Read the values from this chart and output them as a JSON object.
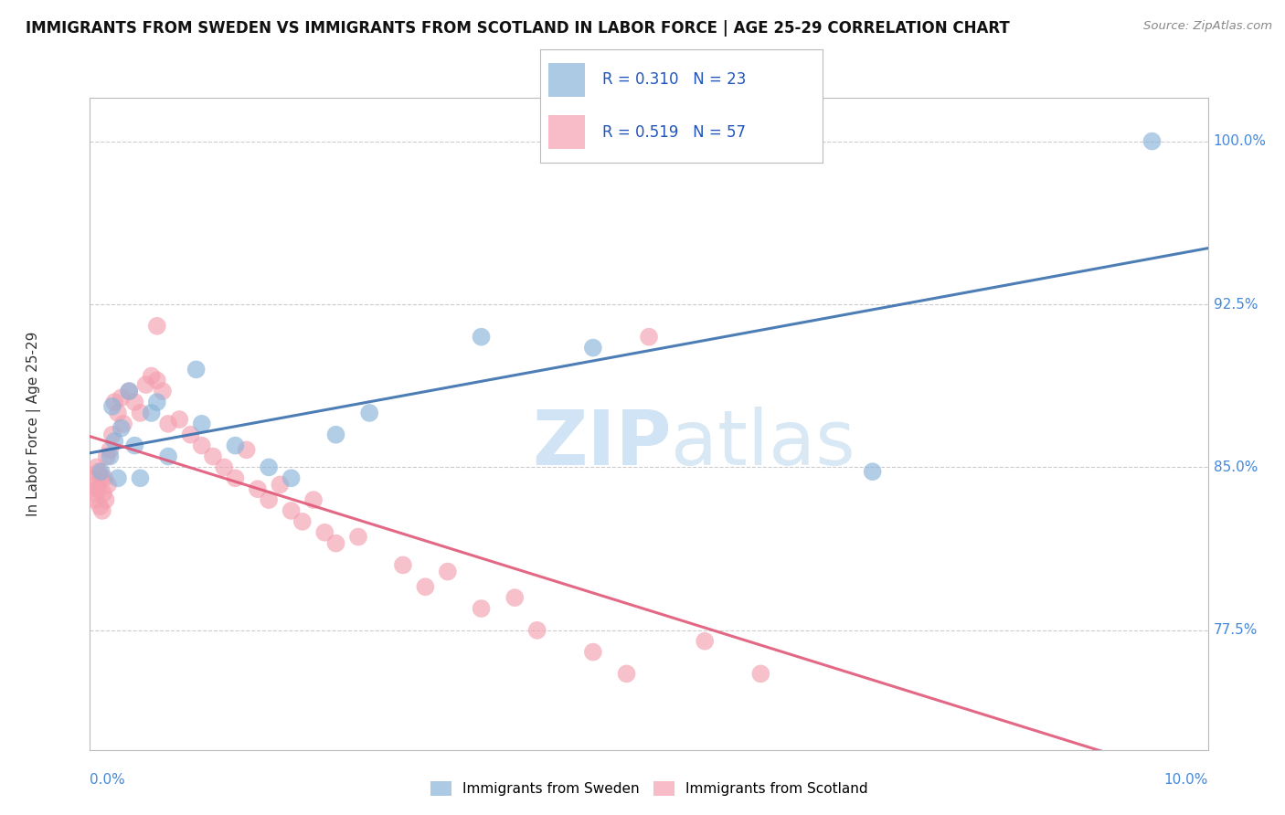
{
  "title": "IMMIGRANTS FROM SWEDEN VS IMMIGRANTS FROM SCOTLAND IN LABOR FORCE | AGE 25-29 CORRELATION CHART",
  "source": "Source: ZipAtlas.com",
  "ylabel_label": "In Labor Force | Age 25-29",
  "legend_blue_r": "R = 0.310",
  "legend_blue_n": "N = 23",
  "legend_pink_r": "R = 0.519",
  "legend_pink_n": "N = 57",
  "blue_color": "#89b4d9",
  "pink_color": "#f4a0b0",
  "blue_line_color": "#3a6fad",
  "pink_line_color": "#e05878",
  "blue_scatter": [
    [
      0.1,
      84.8
    ],
    [
      0.18,
      85.5
    ],
    [
      0.2,
      87.8
    ],
    [
      0.22,
      86.2
    ],
    [
      0.25,
      84.5
    ],
    [
      0.28,
      86.8
    ],
    [
      0.35,
      88.5
    ],
    [
      0.4,
      86.0
    ],
    [
      0.45,
      84.5
    ],
    [
      0.55,
      87.5
    ],
    [
      0.6,
      88.0
    ],
    [
      0.7,
      85.5
    ],
    [
      0.95,
      89.5
    ],
    [
      1.0,
      87.0
    ],
    [
      1.3,
      86.0
    ],
    [
      1.6,
      85.0
    ],
    [
      1.8,
      84.5
    ],
    [
      2.2,
      86.5
    ],
    [
      2.5,
      87.5
    ],
    [
      3.5,
      91.0
    ],
    [
      4.5,
      90.5
    ],
    [
      7.0,
      84.8
    ],
    [
      9.5,
      100.0
    ]
  ],
  "pink_scatter": [
    [
      0.02,
      84.5
    ],
    [
      0.03,
      83.8
    ],
    [
      0.04,
      84.2
    ],
    [
      0.05,
      83.5
    ],
    [
      0.06,
      85.0
    ],
    [
      0.07,
      84.0
    ],
    [
      0.08,
      84.8
    ],
    [
      0.09,
      83.2
    ],
    [
      0.1,
      84.5
    ],
    [
      0.11,
      83.0
    ],
    [
      0.12,
      83.8
    ],
    [
      0.13,
      84.5
    ],
    [
      0.14,
      83.5
    ],
    [
      0.15,
      85.5
    ],
    [
      0.16,
      84.2
    ],
    [
      0.18,
      85.8
    ],
    [
      0.2,
      86.5
    ],
    [
      0.22,
      88.0
    ],
    [
      0.25,
      87.5
    ],
    [
      0.28,
      88.2
    ],
    [
      0.3,
      87.0
    ],
    [
      0.35,
      88.5
    ],
    [
      0.4,
      88.0
    ],
    [
      0.45,
      87.5
    ],
    [
      0.5,
      88.8
    ],
    [
      0.55,
      89.2
    ],
    [
      0.6,
      89.0
    ],
    [
      0.65,
      88.5
    ],
    [
      0.7,
      87.0
    ],
    [
      0.8,
      87.2
    ],
    [
      0.9,
      86.5
    ],
    [
      1.0,
      86.0
    ],
    [
      1.1,
      85.5
    ],
    [
      1.2,
      85.0
    ],
    [
      1.3,
      84.5
    ],
    [
      1.4,
      85.8
    ],
    [
      1.5,
      84.0
    ],
    [
      1.6,
      83.5
    ],
    [
      1.7,
      84.2
    ],
    [
      1.8,
      83.0
    ],
    [
      1.9,
      82.5
    ],
    [
      2.0,
      83.5
    ],
    [
      2.1,
      82.0
    ],
    [
      2.2,
      81.5
    ],
    [
      2.4,
      81.8
    ],
    [
      2.8,
      80.5
    ],
    [
      3.0,
      79.5
    ],
    [
      3.2,
      80.2
    ],
    [
      3.5,
      78.5
    ],
    [
      3.8,
      79.0
    ],
    [
      4.0,
      77.5
    ],
    [
      4.5,
      76.5
    ],
    [
      4.8,
      75.5
    ],
    [
      5.0,
      91.0
    ],
    [
      5.5,
      77.0
    ],
    [
      6.0,
      75.5
    ],
    [
      0.6,
      91.5
    ]
  ],
  "xmin": 0.0,
  "xmax": 10.0,
  "ymin": 72.0,
  "ymax": 102.0,
  "ytick_positions": [
    77.5,
    85.0,
    92.5,
    100.0
  ],
  "ytick_labels": [
    "77.5%",
    "85.0%",
    "92.5%",
    "100.0%"
  ],
  "grid_color": "#cccccc",
  "background": "#ffffff",
  "title_fontsize": 12,
  "axis_label_color": "#4488dd",
  "watermark_color1": "#d0e4f5",
  "watermark_color2": "#c8dff0"
}
